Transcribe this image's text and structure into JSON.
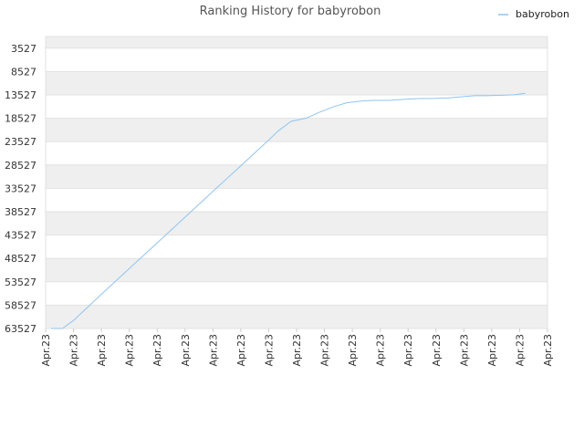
{
  "chart_data": {
    "type": "line",
    "title": "Ranking History for babyrobon",
    "xlabel": "",
    "ylabel": "",
    "y_inverted": true,
    "ylim": [
      63527,
      1027
    ],
    "yticks": [
      3527,
      8527,
      13527,
      18527,
      23527,
      28527,
      33527,
      38527,
      43527,
      48527,
      53527,
      58527,
      63527
    ],
    "x_tick_labels": [
      "Apr.23",
      "Apr.23",
      "Apr.23",
      "Apr.23",
      "Apr.23",
      "Apr.23",
      "Apr.23",
      "Apr.23",
      "Apr.23",
      "Apr.23",
      "Apr.23",
      "Apr.23",
      "Apr.23",
      "Apr.23",
      "Apr.23",
      "Apr.23",
      "Apr.23",
      "Apr.23",
      "Apr.23"
    ],
    "x_domain": [
      0,
      18
    ],
    "grid": true,
    "legend": "top-right",
    "series": [
      {
        "name": "babyrobon",
        "color": "#90c4f0",
        "x": [
          0.2,
          0.6,
          1.0,
          2.0,
          3.0,
          4.0,
          5.0,
          6.0,
          7.0,
          8.0,
          8.35,
          8.8,
          9.35,
          9.8,
          10.35,
          10.8,
          11.4,
          11.8,
          12.3,
          12.8,
          13.4,
          13.8,
          14.4,
          14.8,
          15.4,
          15.8,
          16.4,
          16.8,
          17.2
        ],
        "values": [
          63527,
          63527,
          61800,
          56200,
          50700,
          45200,
          39700,
          34200,
          28700,
          23200,
          21200,
          19200,
          18500,
          17300,
          16000,
          15200,
          14800,
          14700,
          14700,
          14500,
          14300,
          14300,
          14200,
          14000,
          13700,
          13700,
          13600,
          13500,
          13200
        ]
      }
    ]
  }
}
